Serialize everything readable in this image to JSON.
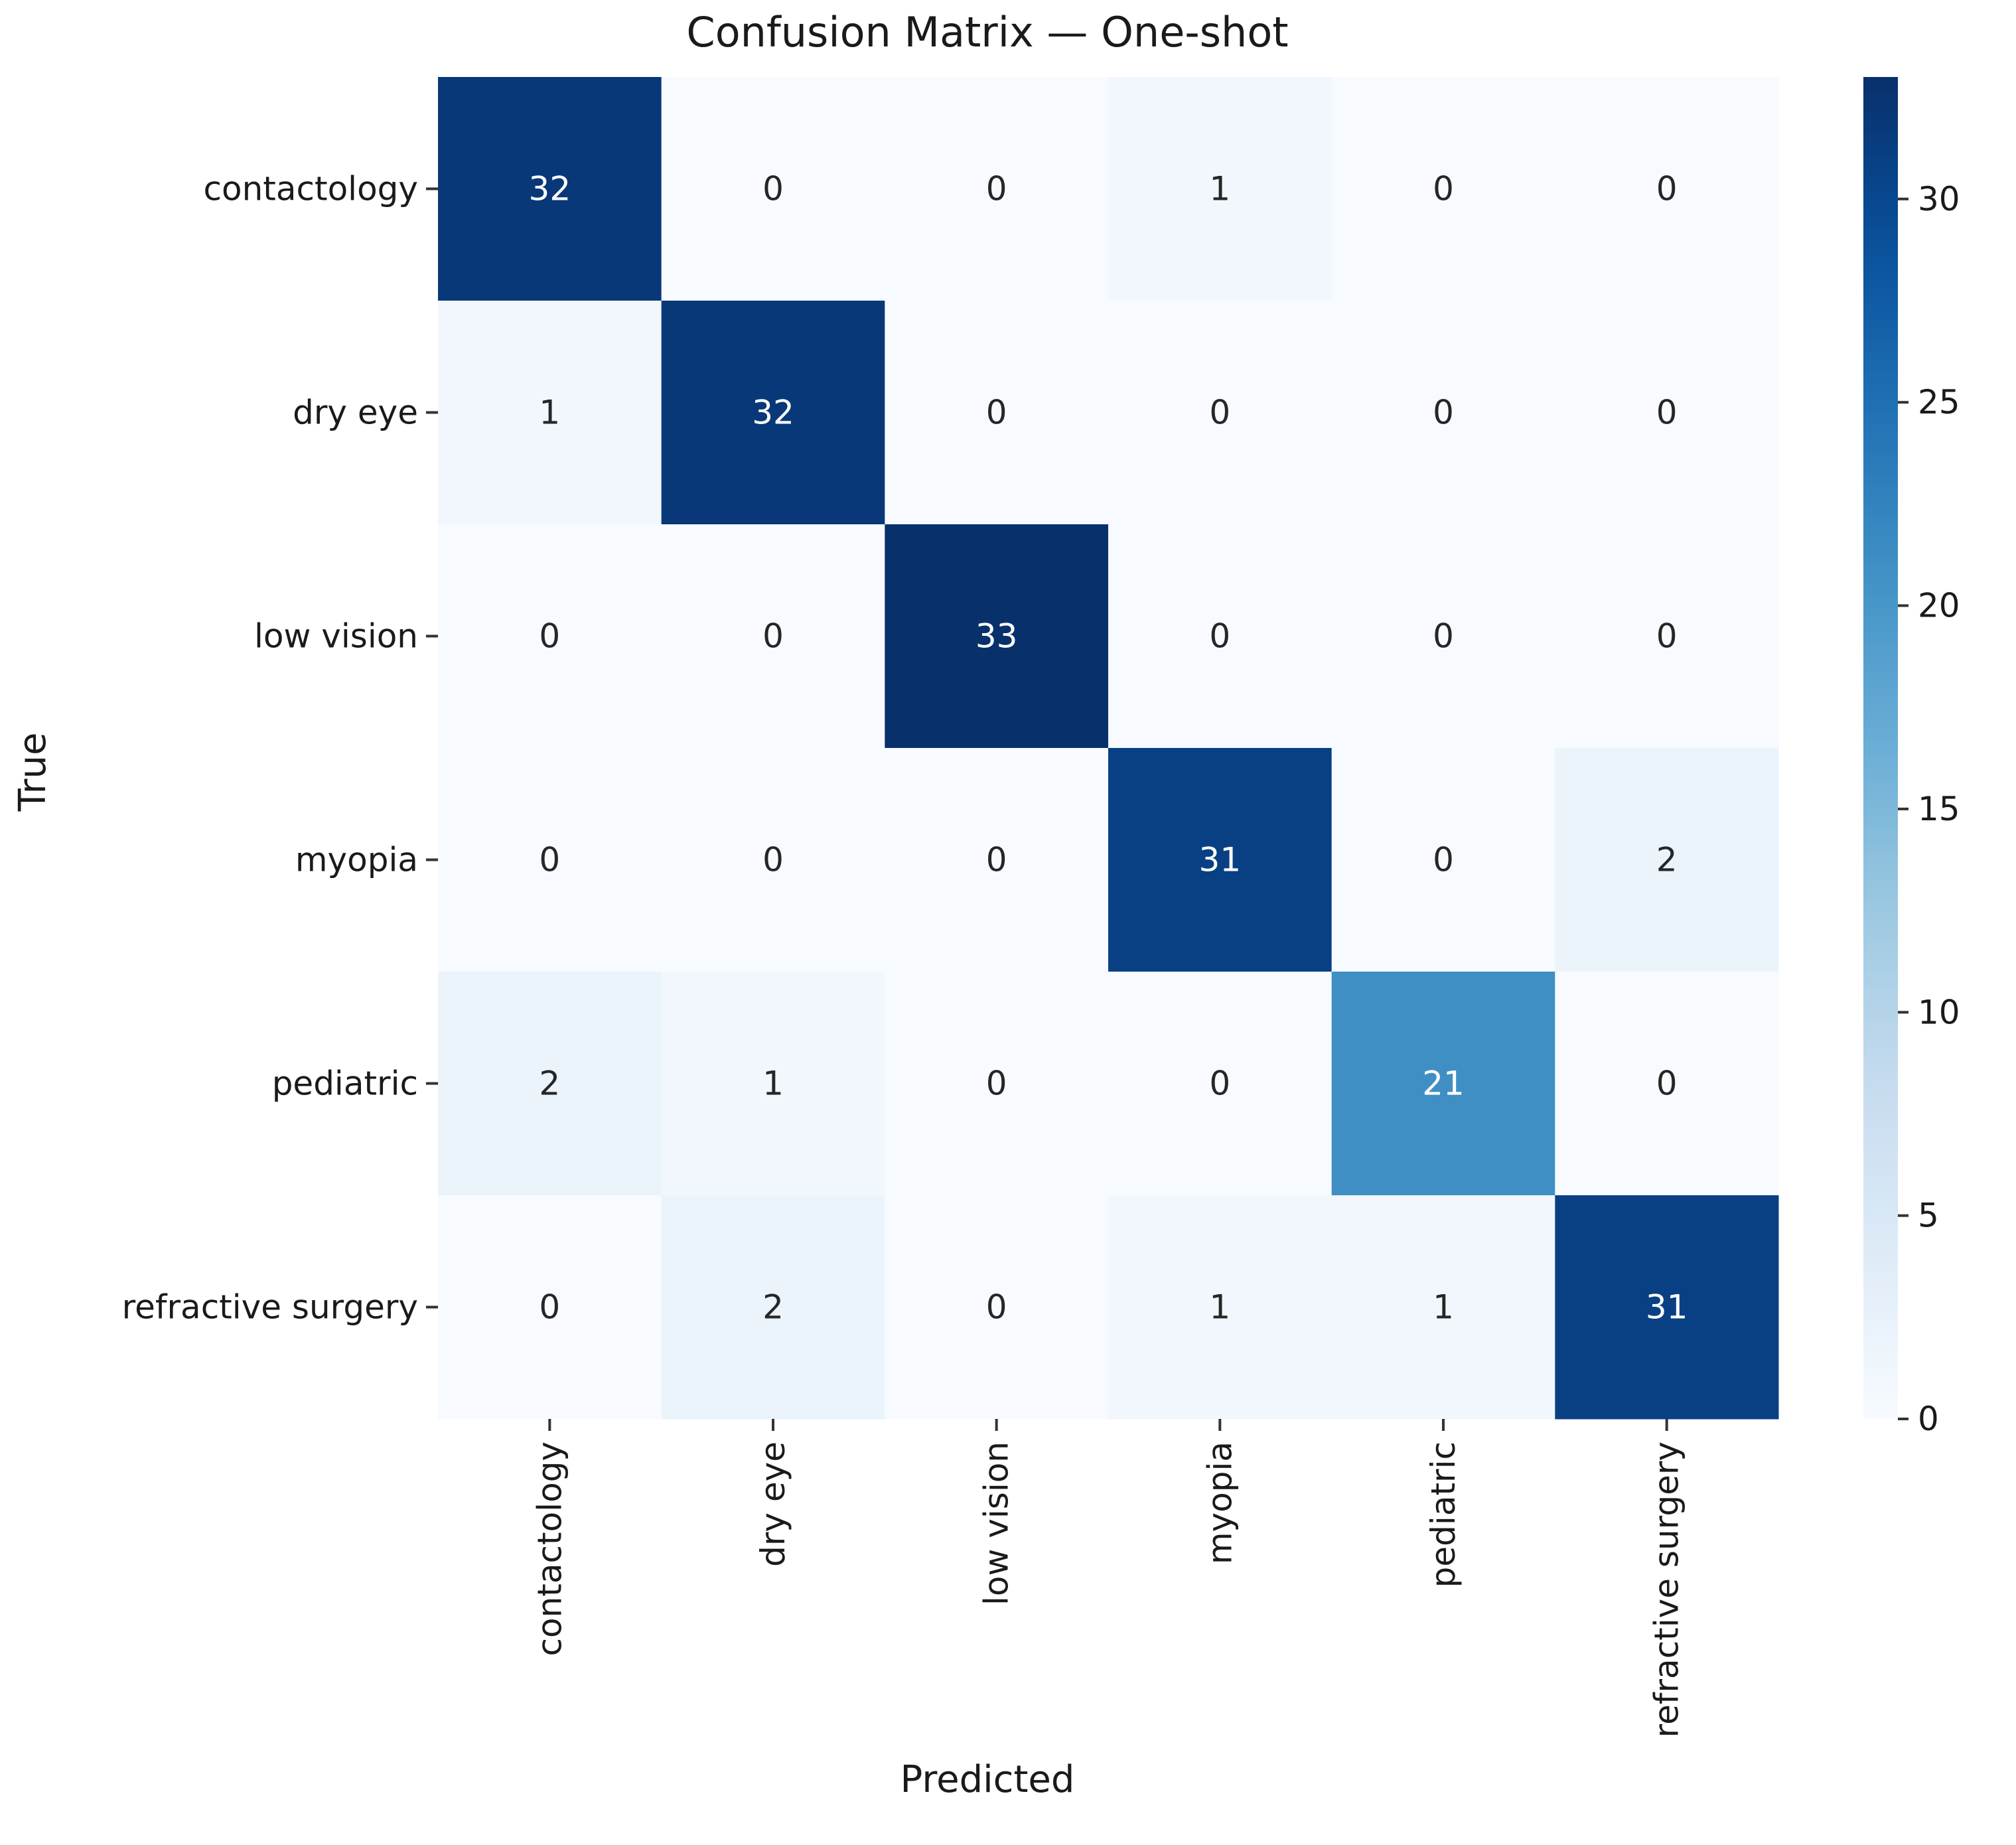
{
  "chart_data": {
    "type": "heatmap",
    "title": "Confusion Matrix — One-shot",
    "xlabel": "Predicted",
    "ylabel": "True",
    "x_categories": [
      "contactology",
      "dry eye",
      "low vision",
      "myopia",
      "pediatric",
      "refractive surgery"
    ],
    "y_categories": [
      "contactology",
      "dry eye",
      "low vision",
      "myopia",
      "pediatric",
      "refractive surgery"
    ],
    "matrix": [
      [
        32,
        0,
        0,
        1,
        0,
        0
      ],
      [
        1,
        32,
        0,
        0,
        0,
        0
      ],
      [
        0,
        0,
        33,
        0,
        0,
        0
      ],
      [
        0,
        0,
        0,
        31,
        0,
        2
      ],
      [
        2,
        1,
        0,
        0,
        21,
        0
      ],
      [
        0,
        2,
        0,
        1,
        1,
        31
      ]
    ],
    "colorbar": {
      "min": 0,
      "max": 33,
      "ticks": [
        0,
        5,
        10,
        15,
        20,
        25,
        30
      ],
      "colormap": "Blues"
    }
  }
}
